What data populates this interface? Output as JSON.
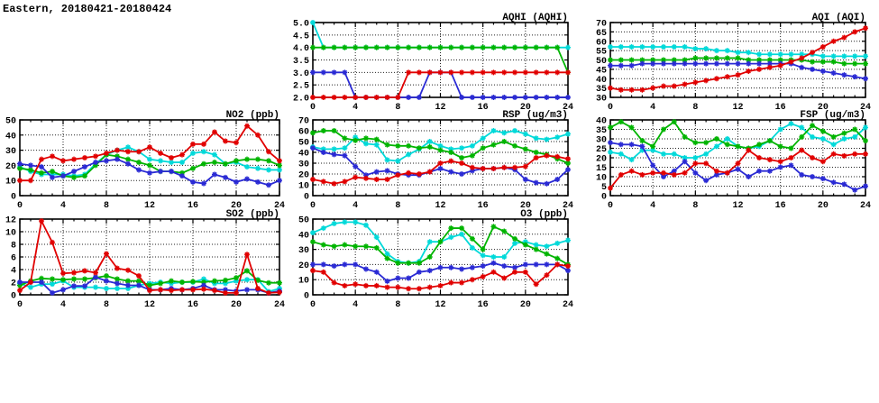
{
  "page_title": "Eastern, 20180421-20180424",
  "hours": [
    0,
    1,
    2,
    3,
    4,
    5,
    6,
    7,
    8,
    9,
    10,
    11,
    12,
    13,
    14,
    15,
    16,
    17,
    18,
    19,
    20,
    21,
    22,
    23,
    24
  ],
  "colors": {
    "red": "#e10000",
    "green": "#00b400",
    "blue": "#2a2ad4",
    "cyan": "#00d9d9"
  },
  "chart_data": [
    {
      "id": "aqhi",
      "title": "AQHI (AQHI)",
      "type": "line",
      "xlabel": "",
      "ylabel": "",
      "x_range": [
        0,
        24
      ],
      "x_ticks": [
        0,
        4,
        8,
        12,
        16,
        20,
        24
      ],
      "y_range": [
        2,
        5
      ],
      "y_ticks": [
        2,
        2.5,
        3,
        3.5,
        4,
        4.5,
        5
      ],
      "y_decimals": 1,
      "grid": true,
      "legend": "none",
      "series": [
        {
          "name": "station-cyan",
          "color": "#00d9d9",
          "values": [
            5,
            4,
            4,
            4,
            4,
            4,
            4,
            4,
            4,
            4,
            4,
            4,
            4,
            4,
            4,
            4,
            4,
            4,
            4,
            4,
            4,
            4,
            4,
            4,
            4
          ]
        },
        {
          "name": "station-green",
          "color": "#00b400",
          "values": [
            4,
            4,
            4,
            4,
            4,
            4,
            4,
            4,
            4,
            4,
            4,
            4,
            4,
            4,
            4,
            4,
            4,
            4,
            4,
            4,
            4,
            4,
            4,
            4,
            3
          ]
        },
        {
          "name": "station-blue",
          "color": "#2a2ad4",
          "values": [
            3,
            3,
            3,
            3,
            2,
            2,
            2,
            2,
            2,
            2,
            2,
            3,
            3,
            3,
            2,
            2,
            2,
            2,
            2,
            2,
            2,
            2,
            2,
            2,
            2
          ]
        },
        {
          "name": "station-red",
          "color": "#e10000",
          "values": [
            2,
            2,
            2,
            2,
            2,
            2,
            2,
            2,
            2,
            3,
            3,
            3,
            3,
            3,
            3,
            3,
            3,
            3,
            3,
            3,
            3,
            3,
            3,
            3,
            3
          ]
        }
      ]
    },
    {
      "id": "aqi",
      "title": "AQI (AQI)",
      "type": "line",
      "xlabel": "",
      "ylabel": "",
      "x_range": [
        0,
        24
      ],
      "x_ticks": [
        0,
        4,
        8,
        12,
        16,
        20,
        24
      ],
      "y_range": [
        30,
        70
      ],
      "y_ticks": [
        30,
        35,
        40,
        45,
        50,
        55,
        60,
        65,
        70
      ],
      "y_decimals": 0,
      "grid": true,
      "legend": "none",
      "series": [
        {
          "name": "station-cyan",
          "color": "#00d9d9",
          "values": [
            57,
            57,
            57,
            57,
            57,
            57,
            57,
            57,
            56,
            56,
            55,
            55,
            54,
            54,
            53,
            53,
            53,
            53,
            53,
            53,
            52,
            52,
            52,
            52,
            52
          ]
        },
        {
          "name": "station-green",
          "color": "#00b400",
          "values": [
            50,
            50,
            50,
            50,
            50,
            50,
            50,
            50,
            51,
            51,
            51,
            51,
            51,
            50,
            50,
            50,
            50,
            50,
            50,
            49,
            49,
            49,
            48,
            48,
            48
          ]
        },
        {
          "name": "station-blue",
          "color": "#2a2ad4",
          "values": [
            47,
            47,
            47,
            48,
            48,
            48,
            48,
            48,
            48,
            48,
            48,
            48,
            48,
            48,
            48,
            48,
            48,
            48,
            46,
            45,
            44,
            43,
            42,
            41,
            40
          ]
        },
        {
          "name": "station-red",
          "color": "#e10000",
          "values": [
            35,
            34,
            34,
            34,
            35,
            36,
            36,
            37,
            38,
            39,
            40,
            41,
            42,
            44,
            45,
            46,
            47,
            49,
            51,
            54,
            57,
            60,
            62,
            65,
            67
          ]
        }
      ]
    },
    {
      "id": "no2",
      "title": "NO2 (ppb)",
      "type": "line",
      "xlabel": "",
      "ylabel": "",
      "x_range": [
        0,
        24
      ],
      "x_ticks": [
        0,
        4,
        8,
        12,
        16,
        20,
        24
      ],
      "y_range": [
        0,
        50
      ],
      "y_ticks": [
        0,
        10,
        20,
        30,
        40,
        50
      ],
      "y_decimals": 0,
      "grid": true,
      "legend": "none",
      "series": [
        {
          "name": "station-cyan",
          "color": "#00d9d9",
          "values": [
            19,
            16,
            14,
            14,
            14,
            13,
            14,
            21,
            27,
            30,
            32,
            29,
            24,
            23,
            22,
            22,
            28,
            29,
            27,
            21,
            22,
            19,
            18,
            17,
            17
          ]
        },
        {
          "name": "station-green",
          "color": "#00b400",
          "values": [
            18,
            17,
            15,
            16,
            13,
            12,
            13,
            20,
            27,
            26,
            24,
            22,
            20,
            16,
            16,
            15,
            18,
            21,
            22,
            21,
            23,
            24,
            24,
            23,
            20
          ]
        },
        {
          "name": "station-blue",
          "color": "#2a2ad4",
          "values": [
            21,
            20,
            19,
            12,
            13,
            16,
            19,
            22,
            23,
            24,
            21,
            17,
            15,
            16,
            16,
            13,
            9,
            8,
            14,
            12,
            9,
            11,
            9,
            7,
            10
          ]
        },
        {
          "name": "station-red",
          "color": "#e10000",
          "values": [
            10,
            10,
            24,
            26,
            23,
            24,
            25,
            26,
            28,
            30,
            29,
            29,
            32,
            28,
            25,
            27,
            34,
            34,
            42,
            36,
            35,
            46,
            40,
            29,
            23
          ]
        }
      ]
    },
    {
      "id": "rsp",
      "title": "RSP (ug/m3)",
      "type": "line",
      "xlabel": "",
      "ylabel": "",
      "x_range": [
        0,
        24
      ],
      "x_ticks": [
        0,
        4,
        8,
        12,
        16,
        20,
        24
      ],
      "y_range": [
        0,
        70
      ],
      "y_ticks": [
        0,
        10,
        20,
        30,
        40,
        50,
        60,
        70
      ],
      "y_decimals": 0,
      "grid": true,
      "legend": "none",
      "series": [
        {
          "name": "station-cyan",
          "color": "#00d9d9",
          "values": [
            45,
            43,
            43,
            44,
            54,
            48,
            47,
            33,
            32,
            38,
            43,
            50,
            46,
            43,
            44,
            46,
            53,
            60,
            58,
            60,
            57,
            53,
            52,
            54,
            57
          ]
        },
        {
          "name": "station-green",
          "color": "#00b400",
          "values": [
            58,
            60,
            60,
            53,
            51,
            53,
            52,
            47,
            46,
            46,
            44,
            45,
            42,
            40,
            35,
            37,
            44,
            47,
            50,
            46,
            43,
            40,
            38,
            34,
            30
          ]
        },
        {
          "name": "station-blue",
          "color": "#2a2ad4",
          "values": [
            44,
            40,
            38,
            37,
            27,
            19,
            22,
            23,
            20,
            19,
            19,
            22,
            25,
            22,
            20,
            23,
            25,
            25,
            26,
            24,
            15,
            12,
            11,
            15,
            24
          ]
        },
        {
          "name": "station-red",
          "color": "#e10000",
          "values": [
            15,
            13,
            11,
            13,
            17,
            16,
            15,
            15,
            19,
            21,
            20,
            22,
            30,
            32,
            30,
            26,
            25,
            25,
            26,
            26,
            27,
            35,
            37,
            36,
            34
          ]
        }
      ]
    },
    {
      "id": "fsp",
      "title": "FSP (ug/m3)",
      "type": "line",
      "xlabel": "",
      "ylabel": "",
      "x_range": [
        0,
        24
      ],
      "x_ticks": [
        0,
        4,
        8,
        12,
        16,
        20,
        24
      ],
      "y_range": [
        0,
        40
      ],
      "y_ticks": [
        0,
        5,
        10,
        15,
        20,
        25,
        30,
        35,
        40
      ],
      "y_decimals": 0,
      "grid": true,
      "legend": "none",
      "series": [
        {
          "name": "station-cyan",
          "color": "#00d9d9",
          "values": [
            23,
            22,
            19,
            24,
            24,
            22,
            22,
            20,
            20,
            22,
            26,
            30,
            26,
            25,
            26,
            29,
            35,
            38,
            36,
            31,
            30,
            27,
            30,
            31,
            36
          ]
        },
        {
          "name": "station-green",
          "color": "#00b400",
          "values": [
            36,
            39,
            36,
            29,
            26,
            35,
            39,
            31,
            28,
            28,
            30,
            27,
            26,
            25,
            27,
            29,
            26,
            25,
            31,
            37,
            34,
            31,
            33,
            35,
            29
          ]
        },
        {
          "name": "station-blue",
          "color": "#2a2ad4",
          "values": [
            28,
            27,
            27,
            26,
            16,
            10,
            13,
            18,
            12,
            8,
            11,
            12,
            14,
            10,
            13,
            13,
            15,
            16,
            11,
            10,
            9,
            7,
            6,
            3,
            5
          ]
        },
        {
          "name": "station-red",
          "color": "#e10000",
          "values": [
            4,
            11,
            13,
            11,
            12,
            12,
            11,
            12,
            17,
            17,
            13,
            12,
            17,
            24,
            20,
            19,
            18,
            20,
            24,
            20,
            18,
            22,
            21,
            22,
            22
          ]
        }
      ]
    },
    {
      "id": "so2",
      "title": "SO2 (ppb)",
      "type": "line",
      "xlabel": "",
      "ylabel": "",
      "x_range": [
        0,
        24
      ],
      "x_ticks": [
        0,
        4,
        8,
        12,
        16,
        20,
        24
      ],
      "y_range": [
        0,
        12
      ],
      "y_ticks": [
        0,
        2,
        4,
        6,
        8,
        10,
        12
      ],
      "y_decimals": 0,
      "grid": true,
      "legend": "none",
      "series": [
        {
          "name": "station-cyan",
          "color": "#00d9d9",
          "values": [
            1.8,
            1.2,
            1.7,
            1.7,
            2.2,
            1.2,
            1.2,
            1.2,
            1.0,
            1.0,
            1.0,
            1.5,
            1.8,
            2.0,
            1.8,
            2.0,
            2.0,
            2.5,
            1.8,
            1.8,
            2.2,
            2.4,
            2.4,
            0.5,
            1.0
          ]
        },
        {
          "name": "station-green",
          "color": "#00b400",
          "values": [
            1.5,
            2.2,
            2.6,
            2.5,
            2.4,
            2.5,
            2.5,
            2.7,
            3.0,
            2.5,
            2.2,
            2.2,
            1.5,
            1.8,
            2.2,
            2.0,
            2.1,
            2.0,
            2.2,
            2.3,
            2.7,
            3.8,
            2.3,
            1.9,
            1.9
          ]
        },
        {
          "name": "station-blue",
          "color": "#2a2ad4",
          "values": [
            2.0,
            2.0,
            2.0,
            0.3,
            0.8,
            1.4,
            1.4,
            2.8,
            2.2,
            1.8,
            1.5,
            1.5,
            0.8,
            0.8,
            1.0,
            0.8,
            1.0,
            1.5,
            0.8,
            0.8,
            0.6,
            0.8,
            0.8,
            0.3,
            0.6
          ]
        },
        {
          "name": "station-red",
          "color": "#e10000",
          "values": [
            0.7,
            2.0,
            11.7,
            8.3,
            3.4,
            3.5,
            3.8,
            3.5,
            6.5,
            4.2,
            3.9,
            3.0,
            0.7,
            0.8,
            0.7,
            0.8,
            0.8,
            0.9,
            0.7,
            0.3,
            0.3,
            6.4,
            1.0,
            0.3,
            0.4
          ]
        }
      ]
    },
    {
      "id": "o3",
      "title": "O3 (ppb)",
      "type": "line",
      "xlabel": "",
      "ylabel": "",
      "x_range": [
        0,
        24
      ],
      "x_ticks": [
        0,
        4,
        8,
        12,
        16,
        20,
        24
      ],
      "y_range": [
        0,
        50
      ],
      "y_ticks": [
        0,
        10,
        20,
        30,
        40,
        50
      ],
      "y_decimals": 0,
      "grid": true,
      "legend": "none",
      "series": [
        {
          "name": "station-cyan",
          "color": "#00d9d9",
          "values": [
            41,
            44,
            47,
            48,
            48,
            46,
            38,
            27,
            22,
            21,
            22,
            35,
            35,
            38,
            40,
            31,
            26,
            25,
            25,
            34,
            35,
            33,
            32,
            34,
            36
          ]
        },
        {
          "name": "station-green",
          "color": "#00b400",
          "values": [
            35,
            33,
            32,
            33,
            32,
            32,
            31,
            24,
            21,
            21,
            21,
            25,
            35,
            44,
            44,
            37,
            30,
            45,
            42,
            37,
            33,
            30,
            27,
            24,
            20
          ]
        },
        {
          "name": "station-blue",
          "color": "#2a2ad4",
          "values": [
            20,
            20,
            19,
            20,
            20,
            17,
            15,
            9,
            11,
            11,
            15,
            16,
            18,
            18,
            17,
            18,
            19,
            21,
            19,
            18,
            20,
            20,
            20,
            20,
            16
          ]
        },
        {
          "name": "station-red",
          "color": "#e10000",
          "values": [
            16,
            15,
            8,
            6,
            7,
            6,
            6,
            5,
            5,
            4,
            4,
            5,
            6,
            8,
            8,
            10,
            12,
            15,
            11,
            15,
            15,
            7,
            13,
            20,
            19
          ]
        }
      ]
    }
  ]
}
